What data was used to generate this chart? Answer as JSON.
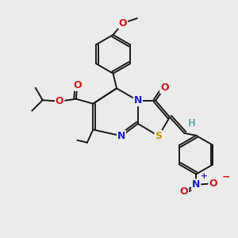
{
  "bg_color": "#ebebeb",
  "bond_color": "#1a1a1a",
  "bond_width": 1.4,
  "atom_colors": {
    "C": "#1a1a1a",
    "H": "#6aacac",
    "N": "#1c1ccc",
    "O": "#cc1a1a",
    "S": "#b8a000"
  }
}
